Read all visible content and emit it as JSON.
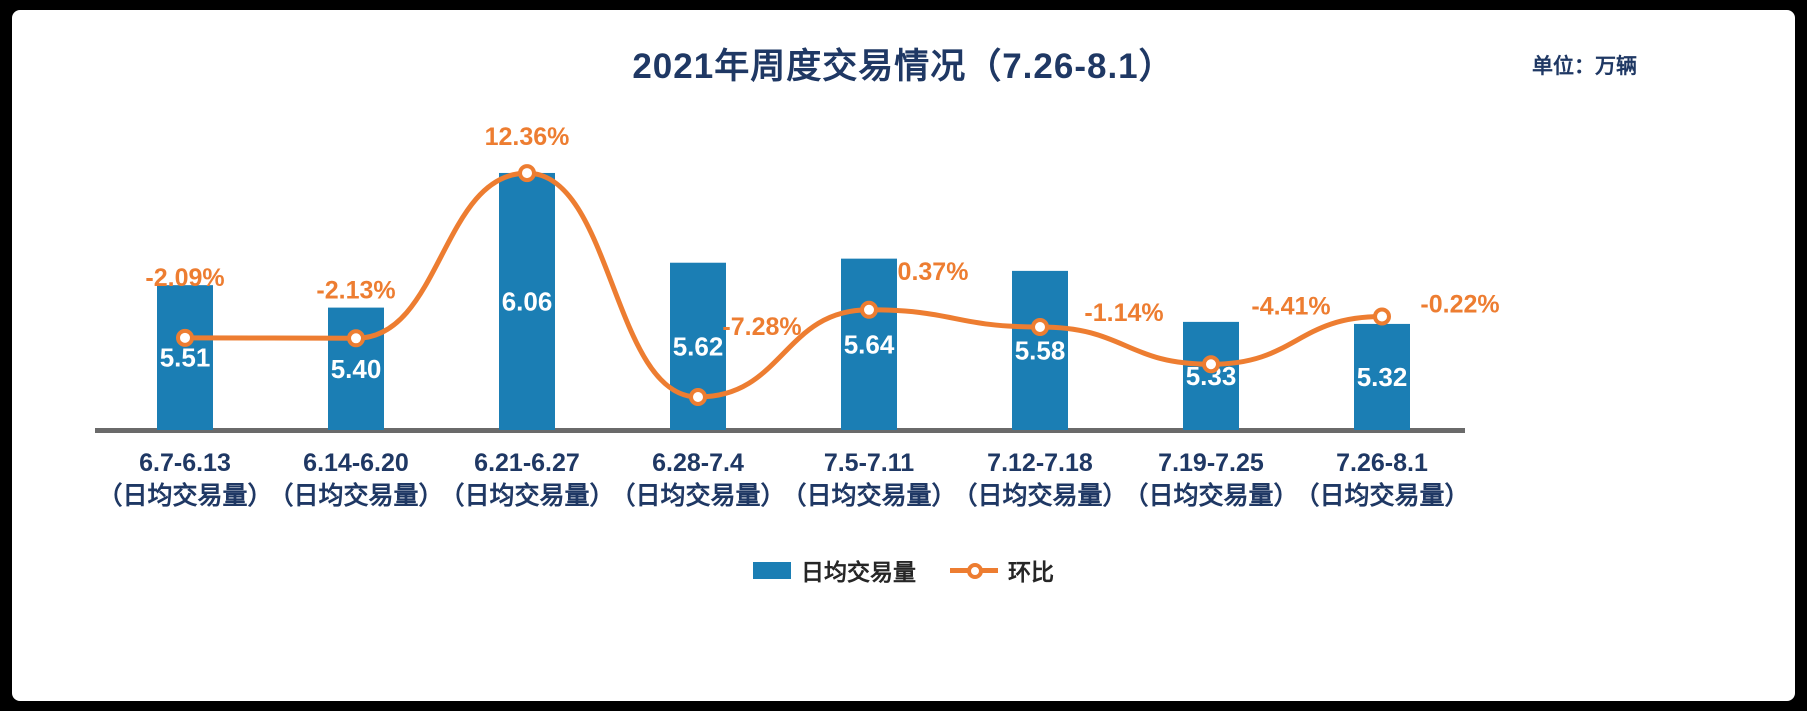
{
  "header": {
    "title": "2021年周度交易情况（7.26-8.1）",
    "unit_label": "单位：万辆"
  },
  "legend": {
    "bar_label": "日均交易量",
    "line_label": "环比"
  },
  "chart_data": {
    "type": "bar",
    "subtype": "bar-with-line-overlay",
    "title": "2021年周度交易情况（7.26-8.1）",
    "unit": "万辆",
    "categories": [
      "6.7-6.13",
      "6.14-6.20",
      "6.21-6.27",
      "6.28-7.4",
      "7.5-7.11",
      "7.12-7.18",
      "7.19-7.25",
      "7.26-8.1"
    ],
    "category_sublabel": "（日均交易量）",
    "series": [
      {
        "name": "日均交易量",
        "type": "bar",
        "values": [
          5.51,
          5.4,
          6.06,
          5.62,
          5.64,
          5.58,
          5.33,
          5.32
        ],
        "labels": [
          "5.51",
          "5.40",
          "6.06",
          "5.62",
          "5.64",
          "5.58",
          "5.33",
          "5.32"
        ]
      },
      {
        "name": "环比",
        "type": "line",
        "unit": "%",
        "values": [
          -2.09,
          -2.13,
          12.36,
          -7.28,
          0.37,
          -1.14,
          -4.41,
          -0.22
        ],
        "labels": [
          "-2.09%",
          "-2.13%",
          "12.36%",
          "-7.28%",
          "0.37%",
          "-1.14%",
          "-4.41%",
          "-0.22%"
        ]
      }
    ],
    "bar_axis": {
      "min": 4.8,
      "max": 6.2
    },
    "line_axis": {
      "min": -10,
      "max": 14
    },
    "legend_position": "bottom",
    "grid": false,
    "colors": {
      "bar": "#1B7EB4",
      "line": "#ED7D31",
      "title": "#1F3864",
      "axis": "#6A6A6A",
      "bar_label": "#FFFFFF"
    }
  }
}
